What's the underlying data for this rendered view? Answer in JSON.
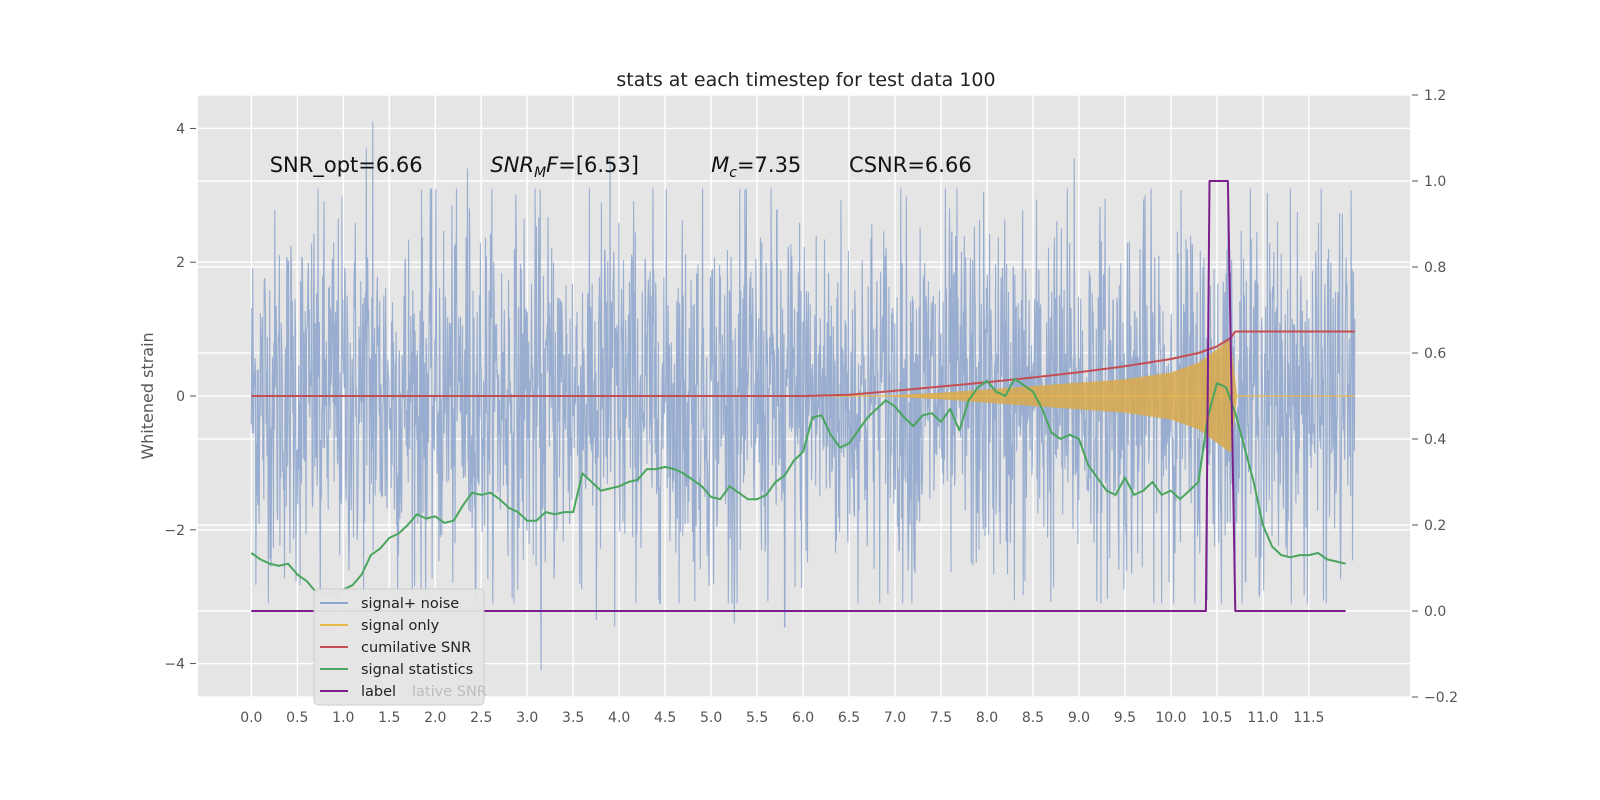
{
  "chart_data": {
    "type": "line",
    "title": "stats at each timestep for test data 100",
    "ylabel": "Whitened strain",
    "y2label": "",
    "xlim": [
      -0.58,
      12.6
    ],
    "ylim": [
      -4.5,
      4.5
    ],
    "y2lim": [
      -0.2,
      1.2
    ],
    "grid": true,
    "background": "#e5e5e5",
    "x_ticks": [
      0.0,
      0.5,
      1.0,
      1.5,
      2.0,
      2.5,
      3.0,
      3.5,
      4.0,
      4.5,
      5.0,
      5.5,
      6.0,
      6.5,
      7.0,
      7.5,
      8.0,
      8.5,
      9.0,
      9.5,
      10.0,
      10.5,
      11.0,
      11.5
    ],
    "x_tick_labels": [
      "0.0",
      "0.5",
      "1.0",
      "1.5",
      "2.0",
      "2.5",
      "3.0",
      "3.5",
      "4.0",
      "4.5",
      "5.0",
      "5.5",
      "6.0",
      "6.5",
      "7.0",
      "7.5",
      "8.0",
      "8.5",
      "9.0",
      "9.5",
      "10.0",
      "10.5",
      "11.0",
      "11.5"
    ],
    "y_ticks": [
      -4,
      -2,
      0,
      2,
      4
    ],
    "y_tick_labels": [
      "−4",
      "−2",
      "0",
      "2",
      "4"
    ],
    "y2_ticks": [
      -0.2,
      0.0,
      0.2,
      0.4,
      0.6,
      0.8,
      1.0,
      1.2
    ],
    "y2_tick_labels": [
      "−0.2",
      "0.0",
      "0.2",
      "0.4",
      "0.6",
      "0.8",
      "1.0",
      "1.2"
    ],
    "annotations": [
      {
        "text": "SNR_opt=6.66",
        "x": 0.2,
        "y": 3.35
      },
      {
        "text": "SNR_MF=[6.53]",
        "x": 2.6,
        "y": 3.35
      },
      {
        "text": "M_c=7.35",
        "x": 5.0,
        "y": 3.35
      },
      {
        "text": "CSNR=6.66",
        "x": 6.5,
        "y": 3.35
      }
    ],
    "series": [
      {
        "name": "signal+ noise",
        "color": "#8fa6cc",
        "axis": "left",
        "description": "dense white noise, approx. 95% within ±2.5, extremes up to 4.1 and down to -4.1",
        "x_range": [
          0.0,
          12.0
        ],
        "envelope": {
          "upper": 2.4,
          "lower": -2.4
        },
        "notable_peaks": [
          {
            "x": 1.32,
            "y": 4.1
          },
          {
            "x": 1.25,
            "y": 3.7
          },
          {
            "x": 8.95,
            "y": 3.55
          },
          {
            "x": 2.35,
            "y": 3.4
          },
          {
            "x": 3.9,
            "y": 3.55
          },
          {
            "x": 5.25,
            "y": 3.4
          },
          {
            "x": 3.15,
            "y": -4.1
          },
          {
            "x": 3.95,
            "y": -3.45
          },
          {
            "x": 5.8,
            "y": -3.45
          },
          {
            "x": 5.25,
            "y": -3.4
          },
          {
            "x": 3.75,
            "y": -3.35
          },
          {
            "x": 0.75,
            "y": -3.2
          }
        ]
      },
      {
        "name": "signal only",
        "color": "#e8b84a",
        "axis": "left",
        "description": "chirp centred on 0, growing amplitude from x=6.8 to merger at x=10.7",
        "x": [
          0.0,
          6.8,
          7.5,
          8.0,
          8.5,
          9.0,
          9.5,
          10.0,
          10.3,
          10.5,
          10.65,
          10.72,
          12.0
        ],
        "amplitude": [
          0.0,
          0.0,
          0.05,
          0.1,
          0.15,
          0.2,
          0.25,
          0.35,
          0.5,
          0.7,
          0.85,
          0.0,
          0.0
        ]
      },
      {
        "name": "cumilative SNR",
        "color": "#c44e52",
        "axis": "right",
        "x": [
          0.0,
          6.0,
          6.5,
          7.0,
          7.5,
          8.0,
          8.5,
          9.0,
          9.5,
          10.0,
          10.3,
          10.5,
          10.65,
          10.7,
          12.0
        ],
        "values": [
          0.5,
          0.5,
          0.503,
          0.512,
          0.522,
          0.532,
          0.543,
          0.555,
          0.569,
          0.586,
          0.6,
          0.615,
          0.635,
          0.65,
          0.65
        ]
      },
      {
        "name": "signal statistics",
        "color": "#4aa55e",
        "axis": "right",
        "x": [
          0.0,
          0.1,
          0.2,
          0.3,
          0.4,
          0.5,
          0.6,
          0.7,
          0.8,
          0.9,
          1.0,
          1.1,
          1.2,
          1.3,
          1.4,
          1.5,
          1.6,
          1.7,
          1.8,
          1.9,
          2.0,
          2.1,
          2.2,
          2.3,
          2.4,
          2.5,
          2.6,
          2.7,
          2.8,
          2.9,
          3.0,
          3.1,
          3.2,
          3.3,
          3.4,
          3.5,
          3.6,
          3.7,
          3.8,
          3.9,
          4.0,
          4.1,
          4.2,
          4.3,
          4.4,
          4.5,
          4.6,
          4.7,
          4.8,
          4.9,
          5.0,
          5.1,
          5.2,
          5.3,
          5.4,
          5.5,
          5.6,
          5.7,
          5.8,
          5.9,
          6.0,
          6.1,
          6.2,
          6.3,
          6.4,
          6.5,
          6.6,
          6.7,
          6.8,
          6.9,
          7.0,
          7.1,
          7.2,
          7.3,
          7.4,
          7.5,
          7.6,
          7.7,
          7.8,
          7.9,
          8.0,
          8.1,
          8.2,
          8.3,
          8.4,
          8.5,
          8.6,
          8.7,
          8.8,
          8.9,
          9.0,
          9.1,
          9.2,
          9.3,
          9.4,
          9.5,
          9.6,
          9.7,
          9.8,
          9.9,
          10.0,
          10.1,
          10.2,
          10.3,
          10.4,
          10.5,
          10.6,
          10.7,
          10.8,
          10.9,
          11.0,
          11.1,
          11.2,
          11.3,
          11.4,
          11.5,
          11.6,
          11.7,
          11.8,
          11.9
        ],
        "values": [
          0.135,
          0.12,
          0.11,
          0.105,
          0.11,
          0.085,
          0.07,
          0.045,
          0.04,
          0.04,
          0.05,
          0.06,
          0.085,
          0.13,
          0.145,
          0.17,
          0.18,
          0.2,
          0.225,
          0.215,
          0.22,
          0.205,
          0.21,
          0.245,
          0.275,
          0.27,
          0.275,
          0.26,
          0.24,
          0.23,
          0.21,
          0.21,
          0.23,
          0.225,
          0.23,
          0.23,
          0.32,
          0.3,
          0.28,
          0.285,
          0.29,
          0.3,
          0.305,
          0.33,
          0.33,
          0.335,
          0.33,
          0.32,
          0.305,
          0.29,
          0.265,
          0.26,
          0.29,
          0.275,
          0.26,
          0.26,
          0.27,
          0.3,
          0.315,
          0.35,
          0.37,
          0.45,
          0.455,
          0.41,
          0.38,
          0.39,
          0.42,
          0.45,
          0.47,
          0.49,
          0.475,
          0.45,
          0.43,
          0.455,
          0.46,
          0.44,
          0.47,
          0.42,
          0.49,
          0.52,
          0.535,
          0.51,
          0.5,
          0.54,
          0.525,
          0.51,
          0.47,
          0.415,
          0.4,
          0.41,
          0.4,
          0.34,
          0.31,
          0.28,
          0.27,
          0.31,
          0.27,
          0.28,
          0.3,
          0.27,
          0.28,
          0.26,
          0.28,
          0.3,
          0.45,
          0.53,
          0.52,
          0.46,
          0.38,
          0.3,
          0.2,
          0.15,
          0.13,
          0.125,
          0.13,
          0.13,
          0.135,
          0.12,
          0.115,
          0.11
        ]
      },
      {
        "name": "label",
        "color": "#7b1f8c",
        "axis": "right",
        "x": [
          0.0,
          10.38,
          10.42,
          10.62,
          10.7,
          11.9
        ],
        "values": [
          0.0,
          0.0,
          1.0,
          1.0,
          0.0,
          0.0
        ]
      }
    ],
    "legend": {
      "placement": "lower-left",
      "entries": [
        "signal+ noise",
        "signal only",
        "cumilative SNR",
        "signal statistics",
        "label"
      ],
      "ghost_text": "lative SNR"
    }
  }
}
